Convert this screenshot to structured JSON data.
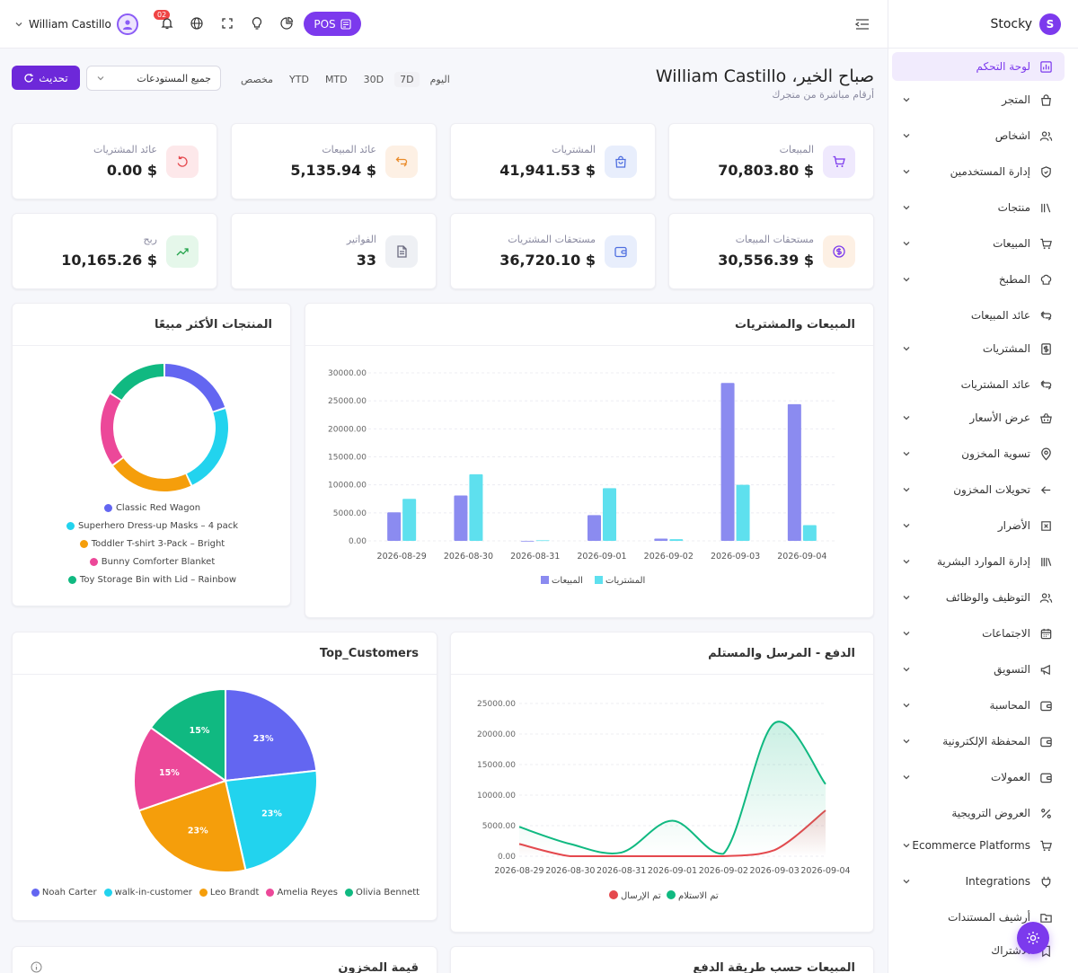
{
  "brand": {
    "name": "Stocky",
    "logo_letter": "S",
    "accent": "#7c3aed"
  },
  "topbar": {
    "user_name": "William Castillo",
    "notifications_count": "02",
    "pos_label": "POS"
  },
  "sidebar": {
    "items": [
      {
        "label": "لوحة التحكم",
        "icon": "dashboard-icon",
        "active": true,
        "chevron": "none"
      },
      {
        "label": "المتجر",
        "icon": "store-icon",
        "chevron": "down"
      },
      {
        "label": "اشخاص",
        "icon": "people-icon",
        "chevron": "down"
      },
      {
        "label": "إدارة المستخدمين",
        "icon": "shield-icon",
        "chevron": "down"
      },
      {
        "label": "منتجات",
        "icon": "products-icon",
        "chevron": "down"
      },
      {
        "label": "المبيعات",
        "icon": "cart-icon",
        "chevron": "down"
      },
      {
        "label": "المطبخ",
        "icon": "chef-icon",
        "chevron": "down"
      },
      {
        "label": "عائد المبيعات",
        "icon": "return-icon",
        "chevron": "left"
      },
      {
        "label": "المشتريات",
        "icon": "dollar-doc-icon",
        "chevron": "down"
      },
      {
        "label": "عائد المشتريات",
        "icon": "return-icon",
        "chevron": "left"
      },
      {
        "label": "عرض الأسعار",
        "icon": "basket-icon",
        "chevron": "down"
      },
      {
        "label": "تسوية المخزون",
        "icon": "pin-icon",
        "chevron": "down"
      },
      {
        "label": "تحويلات المخزون",
        "icon": "arrow-left-icon",
        "chevron": "down"
      },
      {
        "label": "الأضرار",
        "icon": "damage-icon",
        "chevron": "down"
      },
      {
        "label": "إدارة الموارد البشرية",
        "icon": "library-icon",
        "chevron": "down"
      },
      {
        "label": "التوظيف والوظائف",
        "icon": "people-icon",
        "chevron": "down"
      },
      {
        "label": "الاجتماعات",
        "icon": "calendar-icon",
        "chevron": "down"
      },
      {
        "label": "التسويق",
        "icon": "megaphone-icon",
        "chevron": "down"
      },
      {
        "label": "المحاسبة",
        "icon": "wallet-icon",
        "chevron": "down"
      },
      {
        "label": "المحفظة الإلكترونية",
        "icon": "wallet-icon",
        "chevron": "down"
      },
      {
        "label": "العمولات",
        "icon": "wallet-icon",
        "chevron": "down"
      },
      {
        "label": "العروض الترويجية",
        "icon": "percent-icon",
        "chevron": "none"
      },
      {
        "label": "Ecommerce Platforms",
        "icon": "cart-icon",
        "chevron": "down"
      },
      {
        "label": "Integrations",
        "icon": "plug-icon",
        "chevron": "down"
      },
      {
        "label": "أرشيف المستندات",
        "icon": "folder-icon",
        "chevron": "none"
      },
      {
        "label": "الاشتراك",
        "icon": "subscription-icon",
        "chevron": "none"
      }
    ]
  },
  "header": {
    "greeting": "صباح الخير، William Castillo",
    "subtitle": "أرقام مباشرة من متجرك",
    "ranges": [
      "مخصص",
      "YTD",
      "MTD",
      "30D",
      "7D",
      "اليوم"
    ],
    "selected_range": "7D",
    "warehouse_value": "جميع المستودعات",
    "refresh_label": "تحديث"
  },
  "stats": [
    {
      "label": "المبيعات",
      "value": "70,803.80 $",
      "icon": "cart-icon",
      "bg": "#efe9fd",
      "fg": "#7c3aed"
    },
    {
      "label": "المشتريات",
      "value": "41,941.53 $",
      "icon": "bag-icon",
      "bg": "#e8eefc",
      "fg": "#4f6fe0"
    },
    {
      "label": "عائد المبيعات",
      "value": "5,135.94 $",
      "icon": "return-icon",
      "bg": "#fdf0e4",
      "fg": "#ea8b2a"
    },
    {
      "label": "عائد المشتريات",
      "value": "0.00 $",
      "icon": "undo-icon",
      "bg": "#fde8ea",
      "fg": "#e5484d"
    },
    {
      "label": "مستحقات المبيعات",
      "value": "30,556.39 $",
      "icon": "coin-icon",
      "bg": "#fdf0e4",
      "fg": "#7c3aed"
    },
    {
      "label": "مستحقات المشتريات",
      "value": "36,720.10 $",
      "icon": "wallet-icon",
      "bg": "#e8eefc",
      "fg": "#4f6fe0"
    },
    {
      "label": "الفواتير",
      "value": "33",
      "icon": "invoice-icon",
      "bg": "#eef0f4",
      "fg": "#6b6b80"
    },
    {
      "label": "ربح",
      "value": "10,165.26 $",
      "icon": "trend-up-icon",
      "bg": "#e5f7ea",
      "fg": "#22a34a"
    }
  ],
  "panels": {
    "sales_purchases": "المبيعات والمشتريات",
    "top_products": "المنتجات الأكثر مبيعًا",
    "payments": "الدفع - المرسل والمستلم",
    "top_customers": "Top_Customers",
    "by_payment_method": "المبيعات حسب طريقة الدفع",
    "stock_value": "قيمة المخزون"
  },
  "chart_data": [
    {
      "type": "bar",
      "id": "sales_purchases",
      "categories": [
        "2026-08-29",
        "2026-08-30",
        "2026-08-31",
        "2026-09-01",
        "2026-09-02",
        "2026-09-03",
        "2026-09-04"
      ],
      "series": [
        {
          "name": "المبيعات",
          "color": "#8b8bf0",
          "values": [
            5100,
            8100,
            0,
            4600,
            400,
            28200,
            24400
          ]
        },
        {
          "name": "المشتريات",
          "color": "#5ee0ee",
          "values": [
            7500,
            11900,
            100,
            9400,
            300,
            10000,
            2800
          ]
        }
      ],
      "yticks": [
        "30000.00",
        "25000.00",
        "20000.00",
        "15000.00",
        "10000.00",
        "5000.00",
        "0.00"
      ],
      "ylim": [
        0,
        30000
      ],
      "legend": "bottom",
      "grid": true
    },
    {
      "type": "pie",
      "id": "top_products",
      "donut": true,
      "labels": [
        "Classic Red Wagon",
        "Superhero Dress-up Masks – 4 pack",
        "Toddler T-shirt 3-Pack – Bright",
        "Bunny Comforter Blanket",
        "Toy Storage Bin with Lid – Rainbow"
      ],
      "values": [
        20,
        23,
        22,
        19,
        16
      ],
      "colors": [
        "#6366f1",
        "#22d3ee",
        "#f59e0b",
        "#ec4899",
        "#10b981"
      ],
      "legend": "bottom"
    },
    {
      "type": "line",
      "id": "payments",
      "categories": [
        "2026-08-29",
        "2026-08-30",
        "2026-08-31",
        "2026-09-01",
        "2026-09-02",
        "2026-09-03",
        "2026-09-04"
      ],
      "series": [
        {
          "name": "تم الإرسال",
          "color": "#e5484d",
          "values": [
            2000,
            0,
            0,
            0,
            0,
            1000,
            7500
          ]
        },
        {
          "name": "تم الاستلام",
          "color": "#10b981",
          "values": [
            4800,
            2000,
            600,
            5800,
            400,
            21800,
            11800
          ]
        }
      ],
      "yticks": [
        "25000.00",
        "20000.00",
        "15000.00",
        "10000.00",
        "5000.00",
        "0.00"
      ],
      "ylim": [
        0,
        25000
      ],
      "legend": "bottom",
      "grid": true
    },
    {
      "type": "pie",
      "id": "top_customers",
      "labels": [
        "Noah Carter",
        "walk-in-customer",
        "Leo Brandt",
        "Amelia Reyes",
        "Olivia Bennett"
      ],
      "values": [
        23,
        23,
        23,
        15,
        15
      ],
      "pct_labels": [
        "23%",
        "23%",
        "23%",
        "15%",
        "15%"
      ],
      "colors": [
        "#6366f1",
        "#22d3ee",
        "#f59e0b",
        "#ec4899",
        "#10b981"
      ],
      "legend": "bottom"
    }
  ]
}
